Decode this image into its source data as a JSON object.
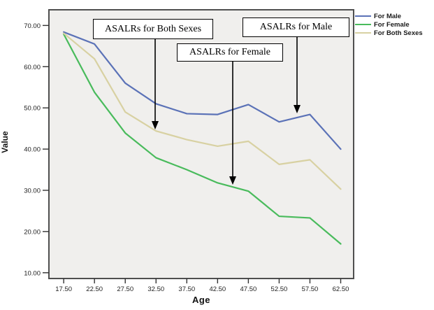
{
  "figure": {
    "background": "#ffffff",
    "plot_background": "#f0efed",
    "plot_border_color": "#4f4f4f",
    "annotation_arrow_color": "#000000"
  },
  "chart_data": {
    "type": "line",
    "title": "",
    "xlabel": "Age",
    "ylabel": "Value",
    "x": [
      17.5,
      22.5,
      27.5,
      32.5,
      37.5,
      42.5,
      47.5,
      52.5,
      57.5,
      62.5
    ],
    "x_tick_labels": [
      "17.50",
      "22.50",
      "27.50",
      "32.50",
      "37.50",
      "42.50",
      "47.50",
      "52.50",
      "57.50",
      "62.50"
    ],
    "y_ticks": [
      10,
      20,
      30,
      40,
      50,
      60,
      70
    ],
    "y_tick_labels": [
      "10.00",
      "20.00",
      "30.00",
      "40.00",
      "50.00",
      "60.00",
      "70.00"
    ],
    "xlim": [
      15.1,
      64.6
    ],
    "ylim": [
      8.6,
      73.8
    ],
    "grid": false,
    "legend_position": "outside-top-right",
    "series": [
      {
        "name": "For Male",
        "color": "#5b72b7",
        "values": [
          68.4,
          65.5,
          56.0,
          51.0,
          48.6,
          48.4,
          50.8,
          46.6,
          48.4,
          40.0
        ]
      },
      {
        "name": "For Female",
        "color": "#49bb5c",
        "values": [
          67.9,
          53.8,
          43.9,
          37.9,
          35.0,
          31.8,
          29.8,
          23.7,
          23.3,
          17.0
        ]
      },
      {
        "name": "For Both Sexes",
        "color": "#d8d1a2",
        "values": [
          68.1,
          61.9,
          49.0,
          44.4,
          42.3,
          40.7,
          41.9,
          36.3,
          37.4,
          30.3
        ]
      }
    ],
    "annotations": [
      {
        "text": "ASALRs for Both Sexes",
        "points_to_series": "For Both Sexes",
        "points_to_x": 32.3
      },
      {
        "text": "ASALRs for Female",
        "points_to_series": "For Female",
        "points_to_x": 45.0
      },
      {
        "text": "ASALRs for Male",
        "points_to_series": "For Male",
        "points_to_x": 55.4
      }
    ]
  }
}
